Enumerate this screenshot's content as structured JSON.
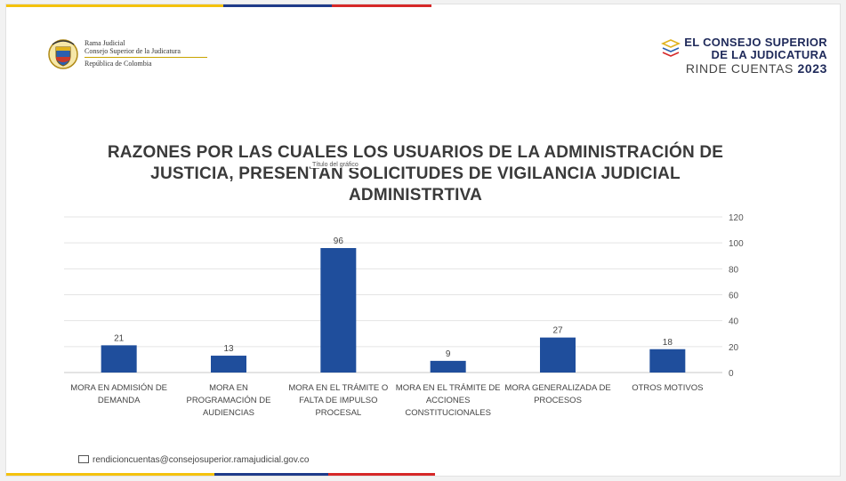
{
  "header": {
    "entity_line1": "Rama Judicial",
    "entity_line2": "Consejo Superior de la Judicatura",
    "entity_line3": "República de Colombia",
    "brand_line1": "EL CONSEJO SUPERIOR",
    "brand_line2": "DE LA JUDICATURA",
    "brand_line3": "RINDE CUENTAS",
    "brand_year": "2023"
  },
  "colors": {
    "bar": "#1f4e9c",
    "flag_yellow": "#f4c20d",
    "flag_blue": "#1f3b8a",
    "flag_red": "#d62828"
  },
  "chart_data": {
    "type": "bar",
    "title": "RAZONES POR LAS CUALES LOS USUARIOS DE LA ADMINISTRACIÓN DE JUSTICIA, PRESENTAN SOLICITUDES DE VIGILANCIA JUDICIAL ADMINISTRTIVA",
    "chart_title_placeholder": "Título del gráfico",
    "categories": [
      [
        "MORA EN ADMISIÓN DE",
        "DEMANDA"
      ],
      [
        "MORA EN",
        "PROGRAMACIÓN DE",
        "AUDIENCIAS"
      ],
      [
        "MORA EN EL TRÁMITE O",
        "FALTA DE IMPULSO",
        "PROCESAL"
      ],
      [
        "MORA EN EL TRÁMITE DE",
        "ACCIONES",
        "CONSTITUCIONALES"
      ],
      [
        "MORA GENERALIZADA DE",
        "PROCESOS"
      ],
      [
        "OTROS MOTIVOS"
      ]
    ],
    "values": [
      21,
      13,
      96,
      9,
      27,
      18
    ],
    "ylim": [
      0,
      120
    ],
    "yticks": [
      0,
      20,
      40,
      60,
      80,
      100,
      120
    ],
    "y_axis_side": "right",
    "grid": true,
    "data_labels": true
  },
  "footer": {
    "email": "rendicioncuentas@consejosuperior.ramajudicial.gov.co"
  }
}
